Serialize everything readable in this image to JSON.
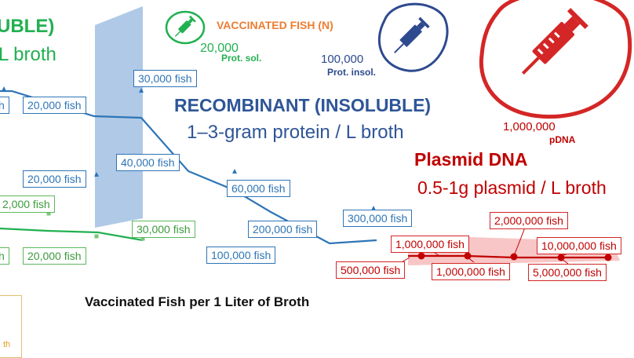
{
  "chart_data": {
    "type": "line",
    "xlabel": "Vaccinated Fish per 1 Liter of Broth",
    "groups": [
      {
        "name": "soluble",
        "title_partial": "UBLE)",
        "subtitle_partial": "L broth",
        "color": "#22b050",
        "labels": [
          "20,000 fish",
          "2,000 fish",
          "30,000 fish",
          "h",
          "20,000 fish"
        ]
      },
      {
        "name": "recombinant",
        "title": "RECOMBINANT (INSOLUBLE)",
        "subtitle": "1–3-gram protein / L broth",
        "color": "#2e75b6",
        "labels": [
          "30,000 fish",
          "h",
          "20,000 fish",
          "40,000 fish",
          "60,000 fish",
          "200,000 fish",
          "100,000 fish",
          "300,000 fish"
        ]
      },
      {
        "name": "plasmid",
        "title": "Plasmid DNA",
        "subtitle": "0.5-1g  plasmid / L broth",
        "color": "#c00000",
        "labels": [
          "2,000,000 fish",
          "1,000,000 fish",
          "10,000,000 fish",
          "500,000 fish",
          "1,000,000 fish",
          "5,000,000 fish"
        ]
      }
    ],
    "legend": {
      "title": "VACCINATED FISH",
      "title_suffix": "(N)",
      "items": [
        {
          "value": "20,000",
          "name": "Prot. sol.",
          "color": "#22b050"
        },
        {
          "value": "100,000",
          "name": "Prot. insol.",
          "color": "#2e4a8f"
        },
        {
          "value": "1,000,000",
          "name": "pDNA",
          "color": "#c00000"
        }
      ]
    },
    "inset_fragment": "th"
  },
  "icons": [
    "syringe-icon-green",
    "syringe-icon-blue",
    "syringe-icon-red"
  ]
}
